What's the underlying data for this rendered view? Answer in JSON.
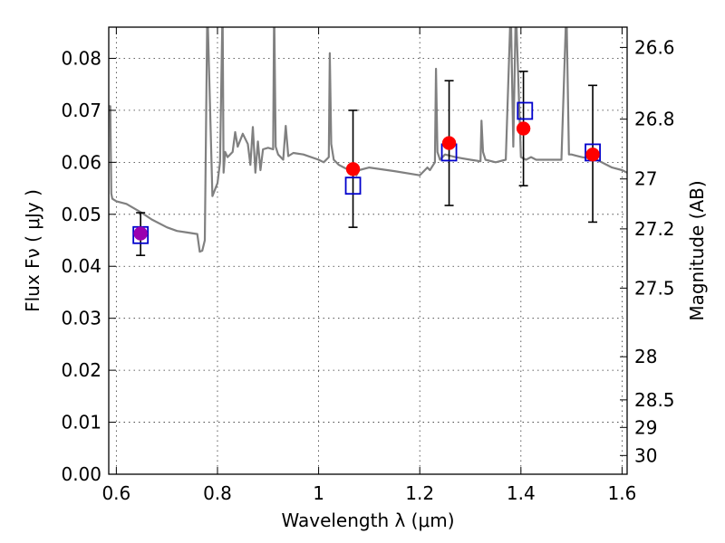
{
  "chart_data": {
    "type": "scatter",
    "xlabel": "Wavelength  λ (μm)",
    "ylabel": "Flux  Fν  ( μJy )",
    "y2label": "Magnitude (AB)",
    "xlim": [
      0.585,
      1.61
    ],
    "ylim": [
      0.0,
      0.086
    ],
    "grid": true,
    "x_ticks": [
      0.6,
      0.8,
      1,
      1.2,
      1.4,
      1.6
    ],
    "x_tick_labels": [
      "0.6",
      "0.8",
      "1",
      "1.2",
      "1.4",
      "1.6"
    ],
    "y_ticks": [
      0.0,
      0.01,
      0.02,
      0.03,
      0.04,
      0.05,
      0.06,
      0.07,
      0.08
    ],
    "y_tick_labels": [
      "0.00",
      "0.01",
      "0.02",
      "0.03",
      "0.04",
      "0.05",
      "0.06",
      "0.07",
      "0.08"
    ],
    "right_ticks": [
      {
        "label": "26.6",
        "flux": 0.0821
      },
      {
        "label": "26.8",
        "flux": 0.0683
      },
      {
        "label": "27",
        "flux": 0.0568
      },
      {
        "label": "27.2",
        "flux": 0.0472
      },
      {
        "label": "27.5",
        "flux": 0.0358
      },
      {
        "label": "28",
        "flux": 0.0226
      },
      {
        "label": "28.5",
        "flux": 0.0143
      },
      {
        "label": "29",
        "flux": 0.009
      },
      {
        "label": "30",
        "flux": 0.0036
      }
    ],
    "colors": {
      "model": "#808080",
      "observed": "#ff0000",
      "model_phot": "#0000cc",
      "first_point": "#9a00b0",
      "errorbar": "#000000"
    },
    "series": [
      {
        "kind": "line",
        "x": [
          0.585,
          0.588,
          0.59,
          0.592,
          0.6,
          0.62,
          0.65,
          0.67,
          0.7,
          0.72,
          0.74,
          0.76,
          0.765,
          0.77,
          0.775,
          0.78,
          0.79,
          0.8,
          0.805,
          0.81,
          0.812,
          0.815,
          0.82,
          0.83,
          0.835,
          0.84,
          0.85,
          0.86,
          0.865,
          0.87,
          0.875,
          0.88,
          0.885,
          0.89,
          0.9,
          0.91,
          0.912,
          0.915,
          0.92,
          0.93,
          0.935,
          0.94,
          0.95,
          0.97,
          1.0,
          1.01,
          1.02,
          1.022,
          1.025,
          1.03,
          1.04,
          1.05,
          1.06,
          1.07,
          1.075,
          1.08,
          1.1,
          1.15,
          1.2,
          1.21,
          1.215,
          1.22,
          1.23,
          1.232,
          1.235,
          1.24,
          1.25,
          1.27,
          1.3,
          1.32,
          1.322,
          1.325,
          1.33,
          1.35,
          1.37,
          1.38,
          1.385,
          1.39,
          1.4,
          1.41,
          1.42,
          1.43,
          1.45,
          1.48,
          1.49,
          1.495,
          1.5,
          1.52,
          1.55,
          1.58,
          1.6,
          1.61
        ],
        "y": [
          0.0708,
          0.0708,
          0.054,
          0.053,
          0.0525,
          0.052,
          0.0503,
          0.049,
          0.0475,
          0.0468,
          0.0465,
          0.0462,
          0.0428,
          0.043,
          0.045,
          0.09,
          0.0535,
          0.056,
          0.06,
          0.09,
          0.058,
          0.062,
          0.061,
          0.062,
          0.0658,
          0.063,
          0.0655,
          0.0635,
          0.0595,
          0.0668,
          0.058,
          0.064,
          0.0585,
          0.0625,
          0.0628,
          0.0625,
          0.09,
          0.063,
          0.0615,
          0.0605,
          0.067,
          0.0612,
          0.0618,
          0.0615,
          0.0605,
          0.06,
          0.061,
          0.081,
          0.0635,
          0.0605,
          0.0595,
          0.059,
          0.0585,
          0.0585,
          0.0575,
          0.0585,
          0.059,
          0.0583,
          0.0575,
          0.0585,
          0.059,
          0.0585,
          0.06,
          0.078,
          0.062,
          0.0605,
          0.0615,
          0.061,
          0.0605,
          0.0602,
          0.068,
          0.062,
          0.0605,
          0.06,
          0.0605,
          0.09,
          0.063,
          0.09,
          0.061,
          0.0605,
          0.061,
          0.0605,
          0.0605,
          0.0605,
          0.09,
          0.0615,
          0.0615,
          0.061,
          0.0605,
          0.059,
          0.0585,
          0.058
        ]
      },
      {
        "kind": "errorbar-points",
        "name": "",
        "x": [
          0.648,
          1.068,
          1.258,
          1.405,
          1.542
        ],
        "y": [
          0.0463,
          0.0587,
          0.0637,
          0.0665,
          0.0615
        ],
        "yerr_low": [
          0.0042,
          0.0112,
          0.012,
          0.011,
          0.013
        ],
        "yerr_high": [
          0.004,
          0.0113,
          0.012,
          0.011,
          0.0133
        ]
      },
      {
        "kind": "square-points",
        "name": "",
        "x": [
          0.648,
          1.068,
          1.258,
          1.408,
          1.542
        ],
        "y": [
          0.046,
          0.0555,
          0.0619,
          0.0699,
          0.0619
        ]
      }
    ]
  }
}
